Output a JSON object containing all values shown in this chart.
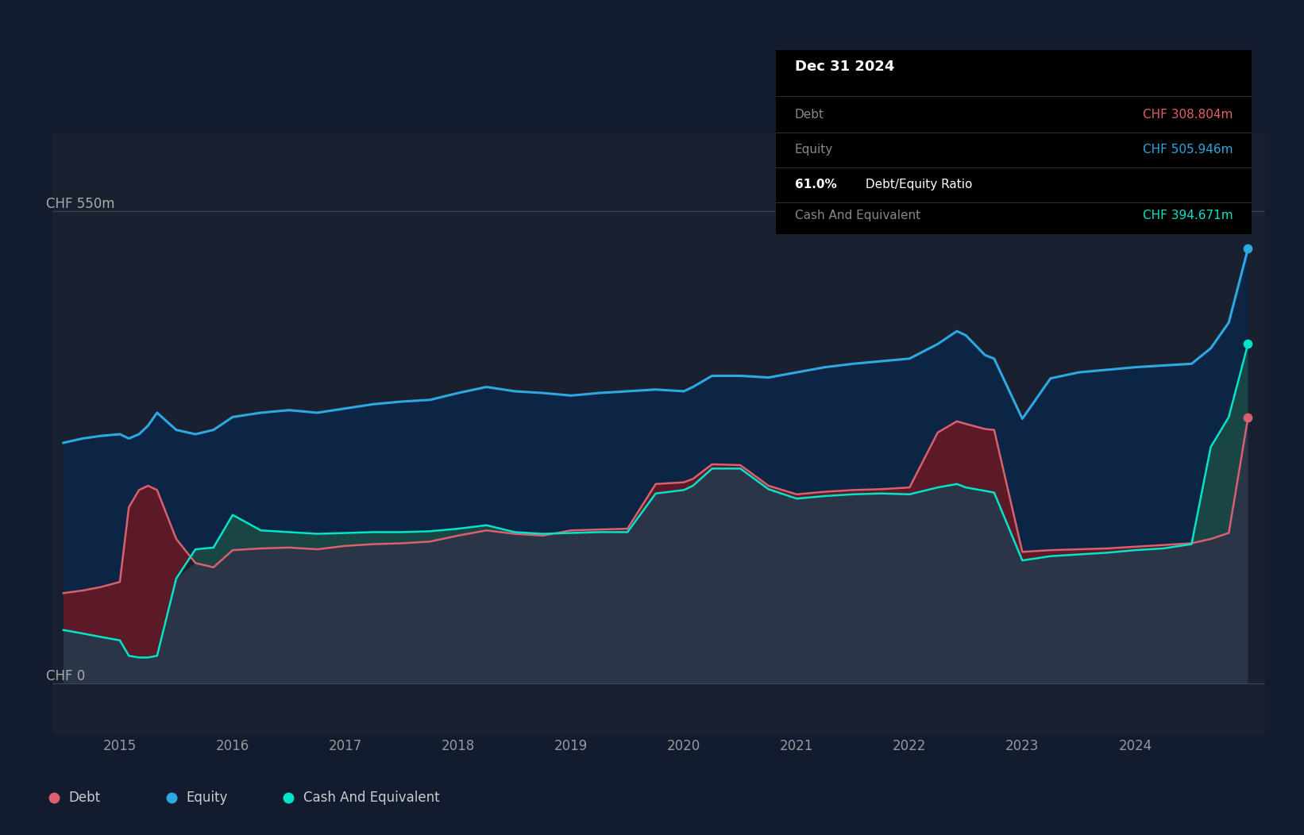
{
  "background_color": "#131b2e",
  "plot_bg_color": "#192030",
  "tooltip_bg": "#000000",
  "ylabel_550": "CHF 550m",
  "ylabel_0": "CHF 0",
  "xlim_start": 2014.4,
  "xlim_end": 2025.15,
  "ylim_min": -60,
  "ylim_max": 640,
  "grid_550": 550,
  "grid_0": 0,
  "tooltip": {
    "date": "Dec 31 2024",
    "debt_label": "Debt",
    "debt_value": "CHF 308.804m",
    "equity_label": "Equity",
    "equity_value": "CHF 505.946m",
    "ratio_bold": "61.0%",
    "ratio_rest": " Debt/Equity Ratio",
    "cash_label": "Cash And Equivalent",
    "cash_value": "CHF 394.671m"
  },
  "equity_color": "#2ea8e0",
  "debt_color": "#d9606e",
  "cash_color": "#00e5c8",
  "fill_equity_cash": "#0d2540",
  "fill_cash_base": "#1a4040",
  "fill_debt_above_cash": "#5c1a2a",
  "fill_below_all": "#2a3545",
  "legend": [
    {
      "label": "Debt",
      "color": "#d9606e"
    },
    {
      "label": "Equity",
      "color": "#2ea8e0"
    },
    {
      "label": "Cash And Equivalent",
      "color": "#00e5c8"
    }
  ],
  "dates": [
    2014.5,
    2014.67,
    2014.83,
    2015.0,
    2015.08,
    2015.17,
    2015.25,
    2015.33,
    2015.5,
    2015.67,
    2015.83,
    2016.0,
    2016.25,
    2016.5,
    2016.75,
    2017.0,
    2017.25,
    2017.5,
    2017.75,
    2018.0,
    2018.25,
    2018.5,
    2018.75,
    2019.0,
    2019.25,
    2019.5,
    2019.75,
    2020.0,
    2020.08,
    2020.25,
    2020.5,
    2020.75,
    2021.0,
    2021.25,
    2021.5,
    2021.75,
    2022.0,
    2022.25,
    2022.42,
    2022.5,
    2022.67,
    2022.75,
    2023.0,
    2023.25,
    2023.5,
    2023.75,
    2024.0,
    2024.25,
    2024.5,
    2024.67,
    2024.83,
    2025.0
  ],
  "equity": [
    280,
    285,
    288,
    290,
    285,
    290,
    300,
    315,
    295,
    290,
    295,
    310,
    315,
    318,
    315,
    320,
    325,
    328,
    330,
    338,
    345,
    340,
    338,
    335,
    338,
    340,
    342,
    340,
    345,
    358,
    358,
    356,
    362,
    368,
    372,
    375,
    378,
    395,
    410,
    405,
    382,
    378,
    308,
    355,
    362,
    365,
    368,
    370,
    372,
    390,
    420,
    506
  ],
  "debt": [
    105,
    108,
    112,
    118,
    205,
    225,
    230,
    225,
    168,
    140,
    135,
    155,
    157,
    158,
    156,
    160,
    162,
    163,
    165,
    172,
    178,
    174,
    172,
    178,
    179,
    180,
    232,
    234,
    238,
    255,
    254,
    230,
    220,
    223,
    225,
    226,
    228,
    292,
    305,
    302,
    296,
    295,
    153,
    155,
    156,
    157,
    159,
    161,
    163,
    168,
    175,
    309
  ],
  "cash": [
    62,
    58,
    54,
    50,
    32,
    30,
    30,
    32,
    122,
    156,
    158,
    196,
    178,
    176,
    174,
    175,
    176,
    176,
    177,
    180,
    184,
    176,
    174,
    175,
    176,
    176,
    221,
    225,
    230,
    250,
    250,
    226,
    215,
    218,
    220,
    221,
    220,
    228,
    232,
    228,
    224,
    222,
    143,
    148,
    150,
    152,
    155,
    157,
    162,
    275,
    310,
    395
  ]
}
